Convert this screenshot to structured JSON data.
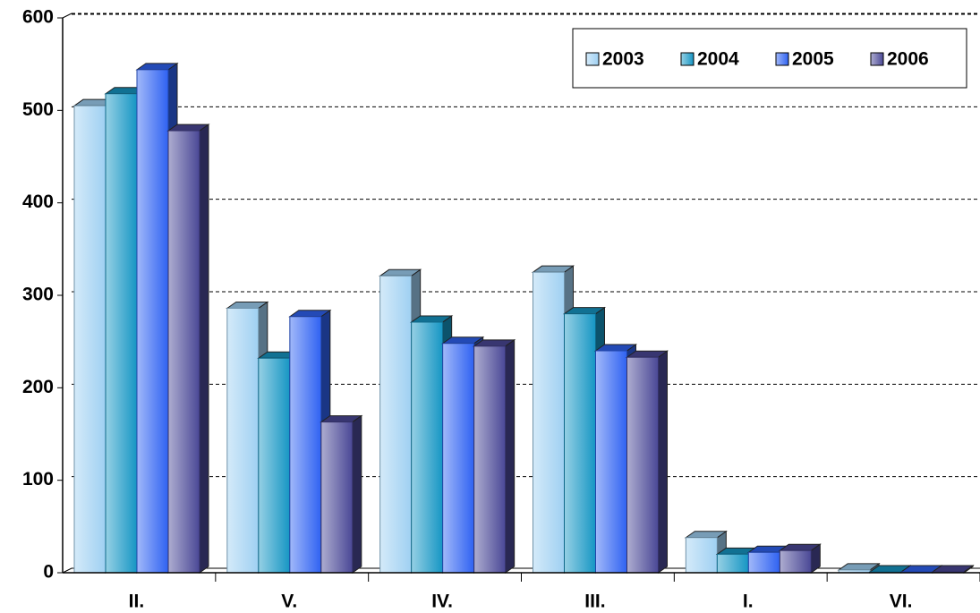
{
  "chart_data": {
    "type": "bar3d",
    "categories": [
      "II.",
      "V.",
      "IV.",
      "III.",
      "I.",
      "VI."
    ],
    "series": [
      {
        "name": "2003",
        "color": "#9fd0f2",
        "values": [
          505,
          286,
          321,
          325,
          38,
          3
        ]
      },
      {
        "name": "2004",
        "color": "#1696c4",
        "values": [
          518,
          232,
          271,
          280,
          20,
          1
        ]
      },
      {
        "name": "2005",
        "color": "#2f62f2",
        "values": [
          544,
          277,
          248,
          240,
          22,
          1
        ]
      },
      {
        "name": "2006",
        "color": "#4a4896",
        "values": [
          478,
          163,
          245,
          233,
          24,
          1
        ]
      }
    ],
    "ylim": [
      0,
      600
    ],
    "yticks": [
      0,
      100,
      200,
      300,
      400,
      500,
      600
    ],
    "grid": true,
    "legend": "upper right"
  }
}
